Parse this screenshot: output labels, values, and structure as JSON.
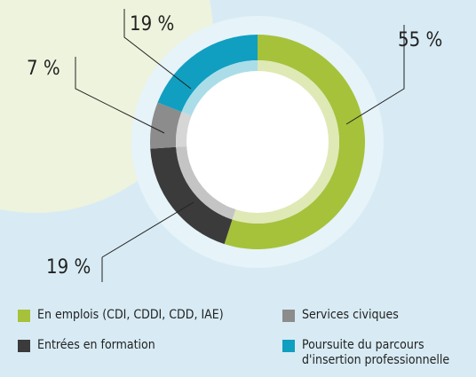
{
  "chart_data": {
    "type": "pie",
    "categories": [
      "En emplois (CDI, CDDI, CDD, IAE)",
      "Entrées en formation",
      "Services civiques",
      "Poursuite du parcours\nd'insertion professionnelle"
    ],
    "values": [
      55,
      19,
      7,
      19
    ],
    "value_labels": [
      "55 %",
      "19 %",
      "7 %",
      "19 %"
    ],
    "colors": [
      "#a6c23b",
      "#3b3b3b",
      "#8c8c8c",
      "#109fc0"
    ],
    "inner_colors": [
      "#dfe9b5",
      "#c4c4c4",
      "#d6d6d6",
      "#abdde9"
    ]
  }
}
